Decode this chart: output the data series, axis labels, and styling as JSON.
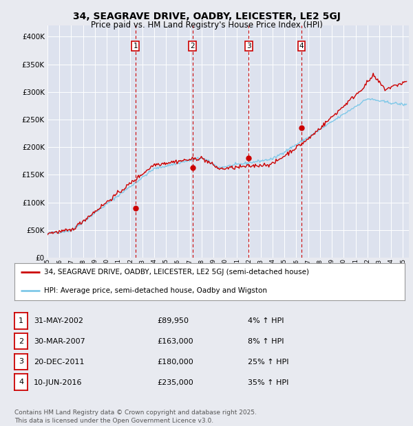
{
  "title": "34, SEAGRAVE DRIVE, OADBY, LEICESTER, LE2 5GJ",
  "subtitle": "Price paid vs. HM Land Registry's House Price Index (HPI)",
  "background_color": "#e8eaf0",
  "plot_background": "#dde2ee",
  "ylim": [
    0,
    420000
  ],
  "yticks": [
    0,
    50000,
    100000,
    150000,
    200000,
    250000,
    300000,
    350000,
    400000
  ],
  "xlim_start": 1995,
  "xlim_end": 2025.5,
  "transactions": [
    {
      "num": 1,
      "date_str": "31-MAY-2002",
      "date_x": 2002.42,
      "price": 89950
    },
    {
      "num": 2,
      "date_str": "30-MAR-2007",
      "date_x": 2007.25,
      "price": 163000
    },
    {
      "num": 3,
      "date_str": "20-DEC-2011",
      "date_x": 2011.97,
      "price": 180000
    },
    {
      "num": 4,
      "date_str": "10-JUN-2016",
      "date_x": 2016.44,
      "price": 235000
    }
  ],
  "legend_line1": "34, SEAGRAVE DRIVE, OADBY, LEICESTER, LE2 5GJ (semi-detached house)",
  "legend_line2": "HPI: Average price, semi-detached house, Oadby and Wigston",
  "footer": "Contains HM Land Registry data © Crown copyright and database right 2025.\nThis data is licensed under the Open Government Licence v3.0.",
  "hpi_color": "#7ec8e8",
  "price_color": "#cc0000",
  "grid_color": "#ffffff",
  "table_rows": [
    {
      "num": 1,
      "date": "31-MAY-2002",
      "price": "£89,950",
      "pct": "4% ↑ HPI"
    },
    {
      "num": 2,
      "date": "30-MAR-2007",
      "price": "£163,000",
      "pct": "8% ↑ HPI"
    },
    {
      "num": 3,
      "date": "20-DEC-2011",
      "price": "£180,000",
      "pct": "25% ↑ HPI"
    },
    {
      "num": 4,
      "date": "10-JUN-2016",
      "price": "£235,000",
      "pct": "35% ↑ HPI"
    }
  ]
}
